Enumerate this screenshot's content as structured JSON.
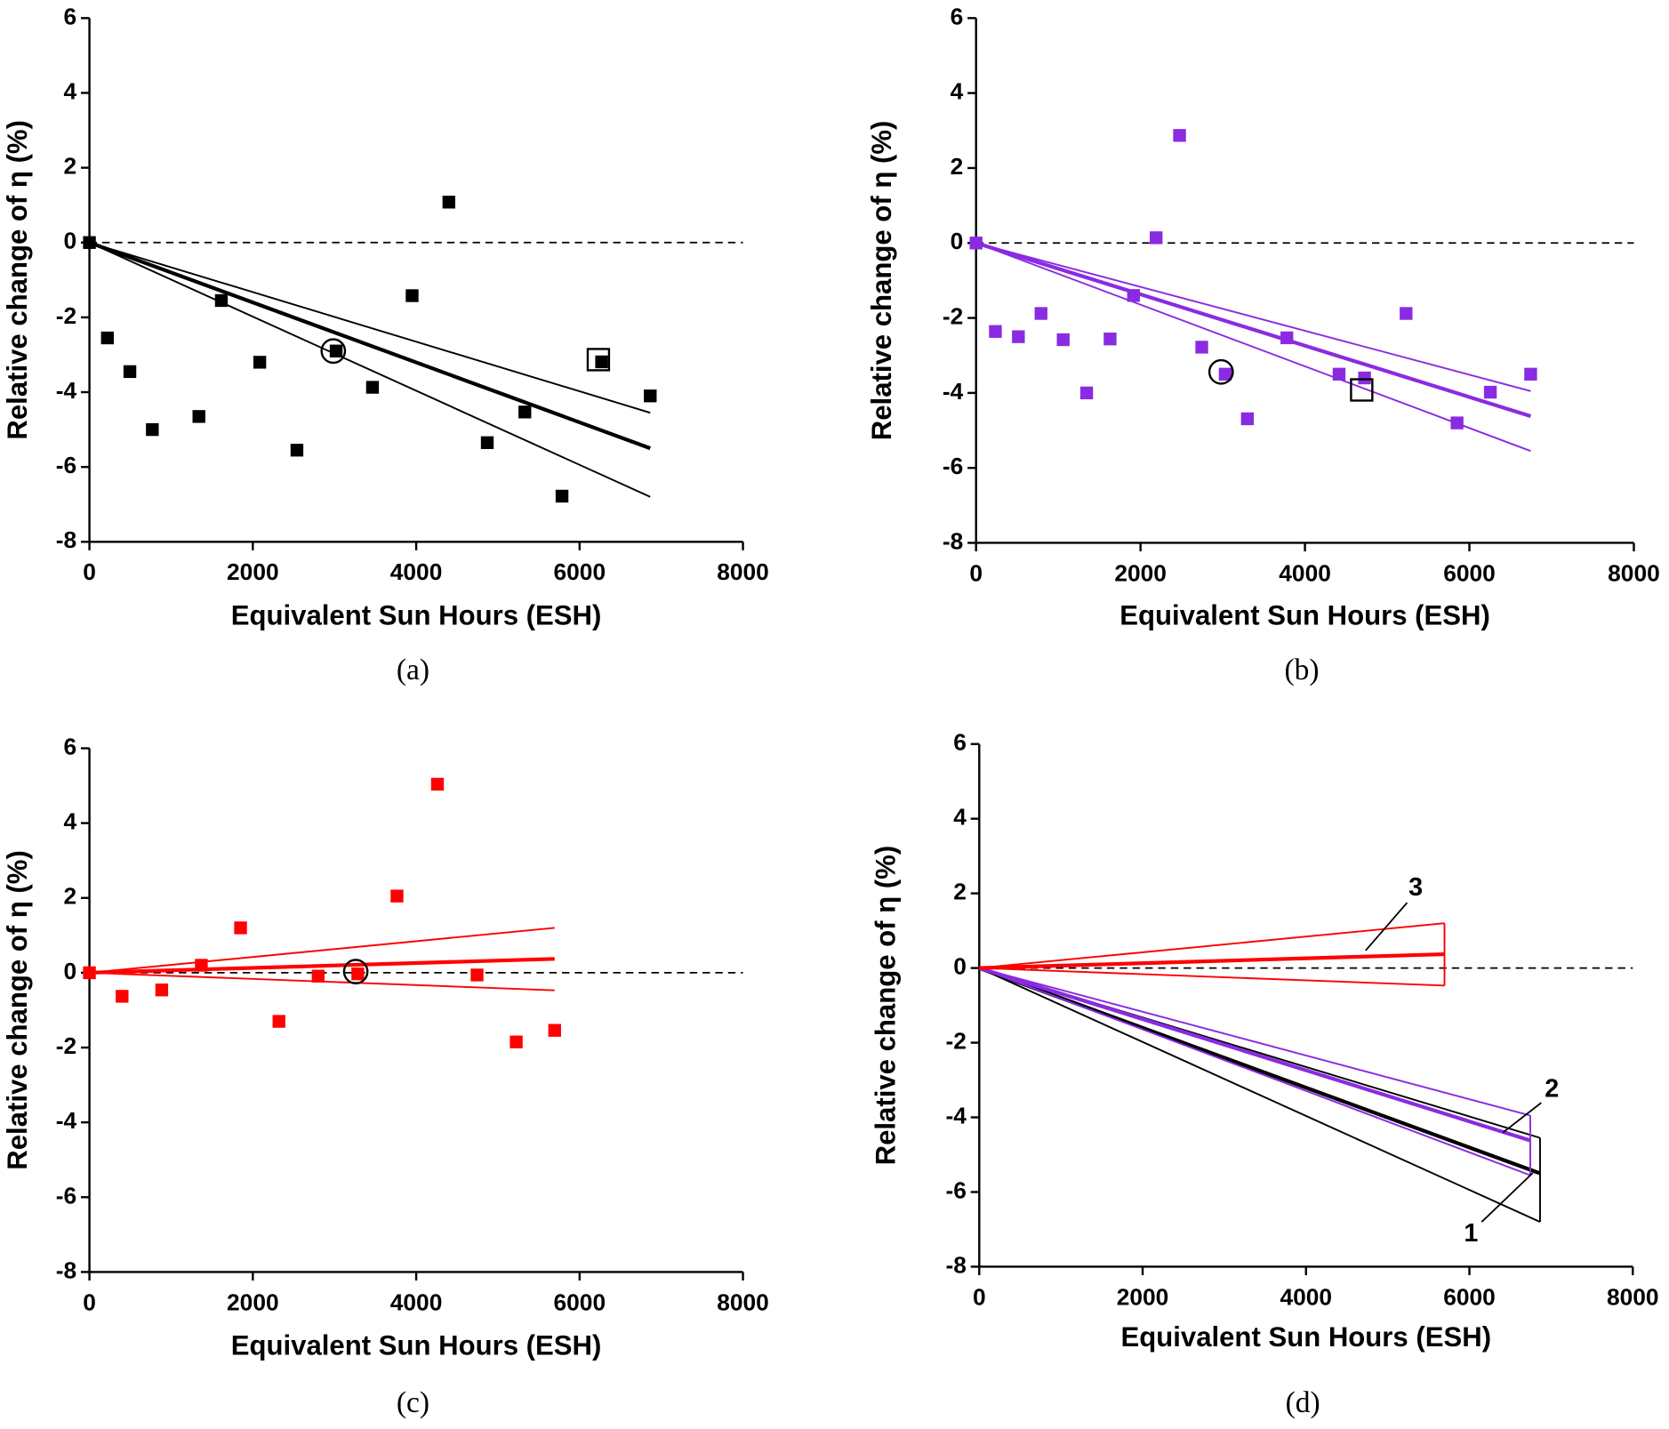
{
  "chart_data": [
    {
      "type": "scatter",
      "caption": "(a)",
      "xlabel": "Equivalent Sun Hours (ESH)",
      "ylabel": "Relative change of η (%)",
      "xlim": [
        0,
        8000
      ],
      "ylim": [
        -8,
        6
      ],
      "xticks": [
        0,
        2000,
        4000,
        6000,
        8000
      ],
      "yticks": [
        -8,
        -6,
        -4,
        -2,
        0,
        2,
        4,
        6
      ],
      "reference_y": 0,
      "color": "#000000",
      "x": [
        0,
        220,
        495,
        770,
        1340,
        1615,
        2085,
        2540,
        3020,
        3465,
        3950,
        4400,
        4870,
        5330,
        5785,
        6270,
        6865
      ],
      "y": [
        0,
        -2.55,
        -3.45,
        -5.0,
        -4.65,
        -1.55,
        -3.2,
        -5.55,
        -2.9,
        -3.87,
        -1.42,
        1.08,
        -5.35,
        -4.53,
        -6.78,
        -3.19,
        -4.1
      ],
      "circle": {
        "x": 2985,
        "y": -2.9
      },
      "square": {
        "x": 6230,
        "y": -3.13
      },
      "fits": [
        {
          "color": "#000000",
          "x": [
            0,
            6865
          ],
          "fit": [
            0,
            -5.5
          ],
          "upper": [
            0,
            -4.55
          ],
          "lower": [
            0,
            -6.8
          ]
        }
      ]
    },
    {
      "type": "scatter",
      "caption": "(b)",
      "xlabel": "Equivalent Sun Hours (ESH)",
      "ylabel": "Relative change of η (%)",
      "xlim": [
        0,
        8000
      ],
      "ylim": [
        -8,
        6
      ],
      "xticks": [
        0,
        2000,
        4000,
        6000,
        8000
      ],
      "yticks": [
        -8,
        -6,
        -4,
        -2,
        0,
        2,
        4,
        6
      ],
      "reference_y": 0,
      "color": "#8a2be2",
      "x": [
        0,
        235,
        515,
        790,
        1060,
        1345,
        1630,
        1915,
        2190,
        2475,
        2745,
        3030,
        3300,
        3780,
        4415,
        4725,
        5230,
        5850,
        6255,
        6745
      ],
      "y": [
        0,
        -2.36,
        -2.5,
        -1.88,
        -2.58,
        -4.0,
        -2.56,
        -1.4,
        0.14,
        2.87,
        -2.78,
        -3.5,
        -4.69,
        -2.53,
        -3.5,
        -3.6,
        -1.88,
        -4.8,
        -3.98,
        -3.5
      ],
      "circle": {
        "x": 2980,
        "y": -3.44
      },
      "square": {
        "x": 4690,
        "y": -3.92
      },
      "fits": [
        {
          "color": "#8a2be2",
          "x": [
            0,
            6745
          ],
          "fit": [
            0,
            -4.62
          ],
          "upper": [
            0,
            -3.95
          ],
          "lower": [
            0,
            -5.55
          ]
        }
      ]
    },
    {
      "type": "scatter",
      "caption": "(c)",
      "xlabel": "Equivalent Sun Hours (ESH)",
      "ylabel": "Relative change of η (%)",
      "xlim": [
        0,
        8000
      ],
      "ylim": [
        -8,
        6
      ],
      "xticks": [
        0,
        2000,
        4000,
        6000,
        8000
      ],
      "yticks": [
        -8,
        -6,
        -4,
        -2,
        0,
        2,
        4,
        6
      ],
      "reference_y": 0,
      "color": "#ff0000",
      "x": [
        0,
        400,
        885,
        1370,
        1850,
        2320,
        2800,
        3285,
        3765,
        4260,
        4745,
        5225,
        5695
      ],
      "y": [
        0,
        -0.63,
        -0.46,
        0.2,
        1.2,
        -1.3,
        -0.09,
        -0.03,
        2.05,
        5.04,
        -0.06,
        -1.85,
        -1.54
      ],
      "circle": {
        "x": 3260,
        "y": 0.03
      },
      "fits": [
        {
          "color": "#ff0000",
          "x": [
            0,
            5695
          ],
          "fit": [
            0,
            0.37
          ],
          "upper": [
            0,
            1.2
          ],
          "lower": [
            0,
            -0.47
          ]
        }
      ]
    },
    {
      "type": "line",
      "caption": "(d)",
      "xlabel": "Equivalent Sun Hours (ESH)",
      "ylabel": "Relative change of η (%)",
      "xlim": [
        0,
        8000
      ],
      "ylim": [
        -8,
        6
      ],
      "xticks": [
        0,
        2000,
        4000,
        6000,
        8000
      ],
      "yticks": [
        -8,
        -6,
        -4,
        -2,
        0,
        2,
        4,
        6
      ],
      "reference_y": 0,
      "closed": true,
      "fits": [
        {
          "color": "#000000",
          "x": [
            0,
            6865
          ],
          "fit": [
            0,
            -5.5
          ],
          "upper": [
            0,
            -4.55
          ],
          "lower": [
            0,
            -6.8
          ]
        },
        {
          "color": "#8a2be2",
          "x": [
            0,
            6745
          ],
          "fit": [
            0,
            -4.62
          ],
          "upper": [
            0,
            -3.95
          ],
          "lower": [
            0,
            -5.55
          ]
        },
        {
          "color": "#ff0000",
          "x": [
            0,
            5695
          ],
          "fit": [
            0,
            0.37
          ],
          "upper": [
            0,
            1.2
          ],
          "lower": [
            0,
            -0.47
          ]
        }
      ],
      "annotations": [
        "1",
        "2",
        "3"
      ]
    }
  ]
}
